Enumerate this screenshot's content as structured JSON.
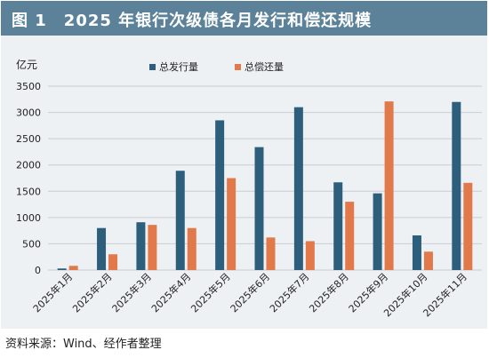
{
  "figure": {
    "title": "图 1　2025 年银行次级债各月发行和偿还规模",
    "source": "资料来源：Wind、经作者整理"
  },
  "chart_data": {
    "type": "bar",
    "ylabel": "亿元",
    "ylim": [
      0,
      3500
    ],
    "yticks": [
      0,
      500,
      1000,
      1500,
      2000,
      2500,
      3000,
      3500
    ],
    "grid": true,
    "legend_position": "top-center",
    "categories": [
      "2025年1月",
      "2025年2月",
      "2025年3月",
      "2025年4月",
      "2025年5月",
      "2025年6月",
      "2025年7月",
      "2025年8月",
      "2025年9月",
      "2025年10月",
      "2025年11月"
    ],
    "series": [
      {
        "name": "总发行量",
        "color": "#2d5f7d",
        "values": [
          30,
          800,
          910,
          1890,
          2850,
          2340,
          3100,
          1670,
          1460,
          660,
          3200
        ]
      },
      {
        "name": "总偿还量",
        "color": "#e2794a",
        "values": [
          80,
          300,
          860,
          800,
          1750,
          620,
          550,
          1300,
          3210,
          350,
          1660
        ]
      }
    ]
  }
}
